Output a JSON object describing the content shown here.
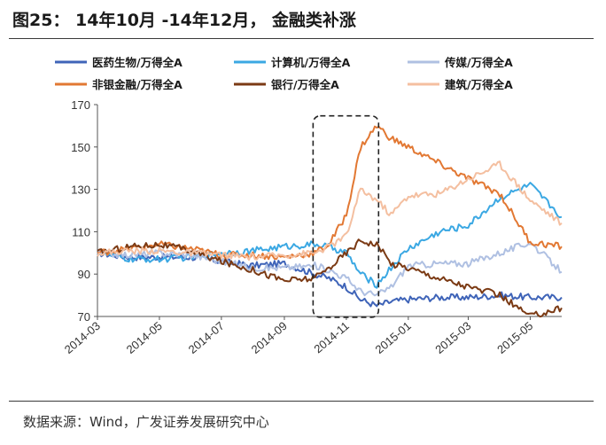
{
  "header": {
    "title": "图25： 14年10月 -14年12月， 金融类补涨"
  },
  "footer": {
    "source": "数据来源：Wind，广发证券发展研究中心"
  },
  "chart_data": {
    "type": "line",
    "title": "",
    "xlabel": "",
    "ylabel": "",
    "ylim": [
      70,
      170
    ],
    "yticks": [
      70,
      90,
      110,
      130,
      150,
      170
    ],
    "x_range": [
      "2014-03",
      "2015-06"
    ],
    "xticks": [
      "2014-03",
      "2014-05",
      "2014-07",
      "2014-09",
      "2014-11",
      "2015-01",
      "2015-03",
      "2015-05"
    ],
    "grid": false,
    "legend_position": "top",
    "highlight_box": {
      "x": [
        "2014-10",
        "2014-12"
      ],
      "y": [
        70,
        163
      ],
      "style": "dashed"
    },
    "series": [
      {
        "name": "医药生物/万得全A",
        "color": "#3F64B8",
        "points": [
          [
            "2014-03",
            100
          ],
          [
            "2014-04",
            98
          ],
          [
            "2014-05",
            98
          ],
          [
            "2014-06",
            98
          ],
          [
            "2014-07",
            96
          ],
          [
            "2014-08",
            94
          ],
          [
            "2014-09",
            95
          ],
          [
            "2014-10",
            90
          ],
          [
            "2014-10-15",
            88
          ],
          [
            "2014-11",
            84
          ],
          [
            "2014-11-15",
            78
          ],
          [
            "2014-12",
            75
          ],
          [
            "2014-12-15",
            77
          ],
          [
            "2015-01",
            78
          ],
          [
            "2015-02",
            79
          ],
          [
            "2015-03",
            79
          ],
          [
            "2015-04",
            80
          ],
          [
            "2015-05",
            79
          ],
          [
            "2015-06",
            79
          ]
        ]
      },
      {
        "name": "计算机/万得全A",
        "color": "#3BA8E3",
        "points": [
          [
            "2014-03",
            100
          ],
          [
            "2014-04",
            97
          ],
          [
            "2014-05",
            97
          ],
          [
            "2014-06",
            98
          ],
          [
            "2014-07",
            100
          ],
          [
            "2014-08",
            101
          ],
          [
            "2014-09",
            103
          ],
          [
            "2014-10",
            104
          ],
          [
            "2014-10-15",
            103
          ],
          [
            "2014-11",
            100
          ],
          [
            "2014-11-15",
            90
          ],
          [
            "2014-12",
            85
          ],
          [
            "2014-12-15",
            93
          ],
          [
            "2015-01",
            102
          ],
          [
            "2015-02",
            110
          ],
          [
            "2015-03",
            113
          ],
          [
            "2015-04",
            126
          ],
          [
            "2015-05",
            132
          ],
          [
            "2015-06",
            117
          ]
        ]
      },
      {
        "name": "传媒/万得全A",
        "color": "#AFC0E2",
        "points": [
          [
            "2014-03",
            100
          ],
          [
            "2014-04",
            99
          ],
          [
            "2014-05",
            100
          ],
          [
            "2014-06",
            99
          ],
          [
            "2014-07",
            96
          ],
          [
            "2014-08",
            93
          ],
          [
            "2014-09",
            93
          ],
          [
            "2014-10",
            94
          ],
          [
            "2014-10-15",
            92
          ],
          [
            "2014-11",
            88
          ],
          [
            "2014-11-15",
            82
          ],
          [
            "2014-12",
            80
          ],
          [
            "2014-12-15",
            84
          ],
          [
            "2015-01",
            94
          ],
          [
            "2015-02",
            95
          ],
          [
            "2015-03",
            95
          ],
          [
            "2015-04",
            100
          ],
          [
            "2015-05",
            105
          ],
          [
            "2015-06",
            91
          ]
        ]
      },
      {
        "name": "非银金融/万得全A",
        "color": "#E27833",
        "points": [
          [
            "2014-03",
            100
          ],
          [
            "2014-04",
            102
          ],
          [
            "2014-05",
            104
          ],
          [
            "2014-06",
            102
          ],
          [
            "2014-07",
            99
          ],
          [
            "2014-08",
            99
          ],
          [
            "2014-09",
            98
          ],
          [
            "2014-10",
            100
          ],
          [
            "2014-10-15",
            104
          ],
          [
            "2014-11",
            118
          ],
          [
            "2014-11-15",
            150
          ],
          [
            "2014-12",
            160
          ],
          [
            "2014-12-15",
            154
          ],
          [
            "2015-01",
            150
          ],
          [
            "2015-02",
            142
          ],
          [
            "2015-03",
            135
          ],
          [
            "2015-04",
            128
          ],
          [
            "2015-05",
            105
          ],
          [
            "2015-06",
            103
          ]
        ]
      },
      {
        "name": "银行/万得全A",
        "color": "#7B3A14",
        "points": [
          [
            "2014-03",
            100
          ],
          [
            "2014-04",
            103
          ],
          [
            "2014-05",
            104
          ],
          [
            "2014-06",
            101
          ],
          [
            "2014-07",
            96
          ],
          [
            "2014-08",
            92
          ],
          [
            "2014-09",
            87
          ],
          [
            "2014-10",
            88
          ],
          [
            "2014-10-15",
            93
          ],
          [
            "2014-11",
            100
          ],
          [
            "2014-11-15",
            106
          ],
          [
            "2014-12",
            104
          ],
          [
            "2014-12-15",
            95
          ],
          [
            "2015-01",
            93
          ],
          [
            "2015-02",
            88
          ],
          [
            "2015-03",
            84
          ],
          [
            "2015-04",
            80
          ],
          [
            "2015-05",
            70
          ],
          [
            "2015-06",
            74
          ]
        ]
      },
      {
        "name": "建筑/万得全A",
        "color": "#F4BFA0",
        "points": [
          [
            "2014-03",
            100
          ],
          [
            "2014-04",
            101
          ],
          [
            "2014-05",
            101
          ],
          [
            "2014-06",
            100
          ],
          [
            "2014-07",
            99
          ],
          [
            "2014-08",
            98
          ],
          [
            "2014-09",
            99
          ],
          [
            "2014-10",
            100
          ],
          [
            "2014-10-15",
            103
          ],
          [
            "2014-11",
            108
          ],
          [
            "2014-11-15",
            130
          ],
          [
            "2014-12",
            125
          ],
          [
            "2014-12-15",
            118
          ],
          [
            "2015-01",
            127
          ],
          [
            "2015-02",
            128
          ],
          [
            "2015-03",
            135
          ],
          [
            "2015-04",
            142
          ],
          [
            "2015-05",
            125
          ],
          [
            "2015-06",
            114
          ]
        ]
      }
    ]
  }
}
